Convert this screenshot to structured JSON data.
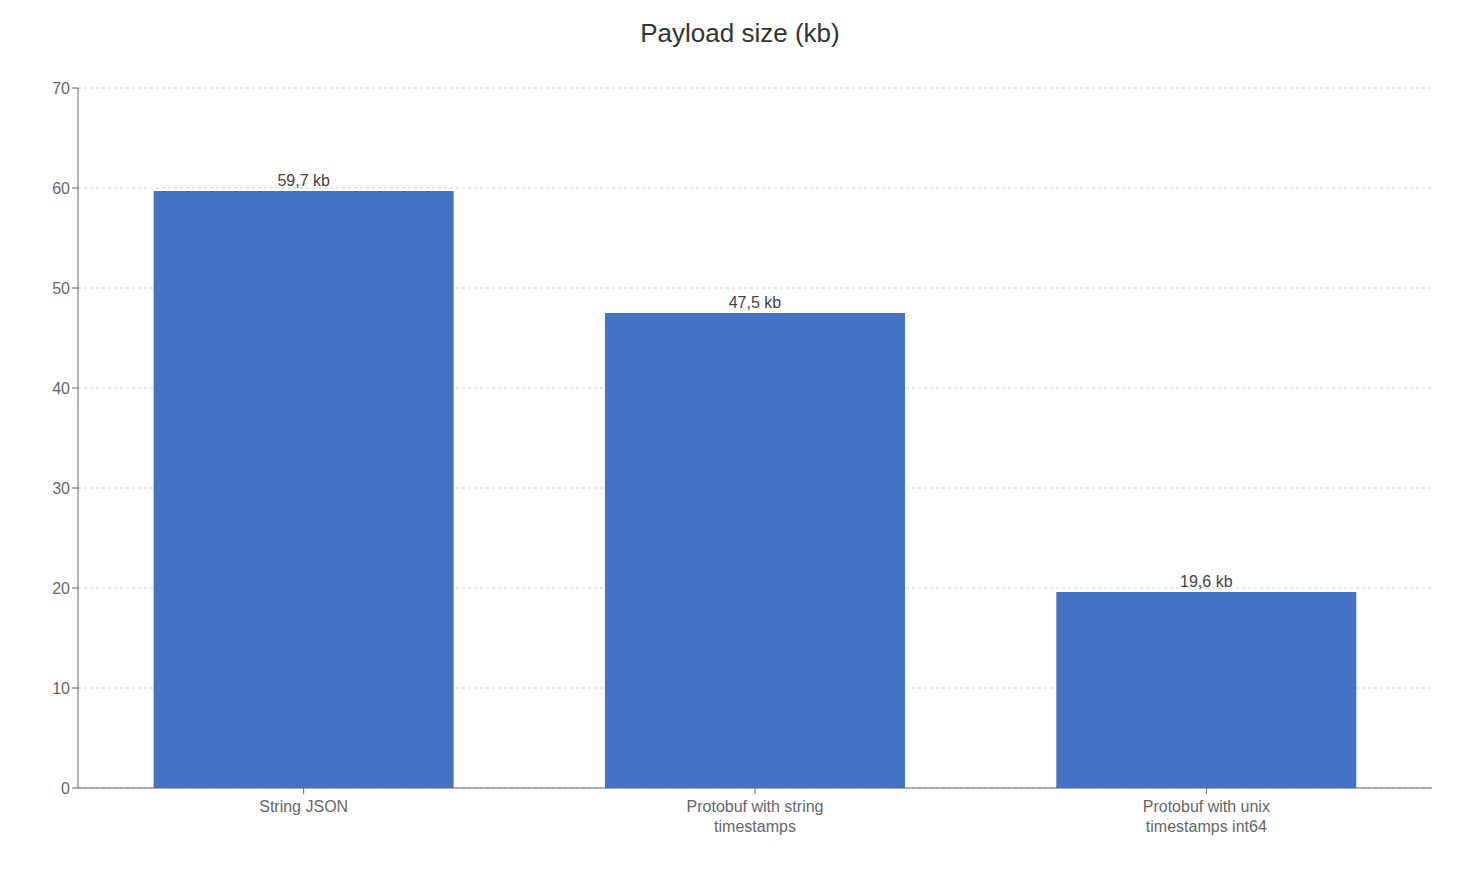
{
  "chart_data": {
    "type": "bar",
    "title": "Payload size (kb)",
    "categories": [
      "String JSON",
      "Protobuf with string\ntimestamps",
      "Protobuf with unix\ntimestamps int64"
    ],
    "values": [
      59.7,
      47.5,
      19.6
    ],
    "value_labels": [
      "59,7 kb",
      "47,5 kb",
      "19,6 kb"
    ],
    "data_labels": true,
    "color": "#4472C4",
    "ylim": [
      0,
      70
    ],
    "yticks": [
      0,
      10,
      20,
      30,
      40,
      50,
      60,
      70
    ],
    "grid": true
  }
}
